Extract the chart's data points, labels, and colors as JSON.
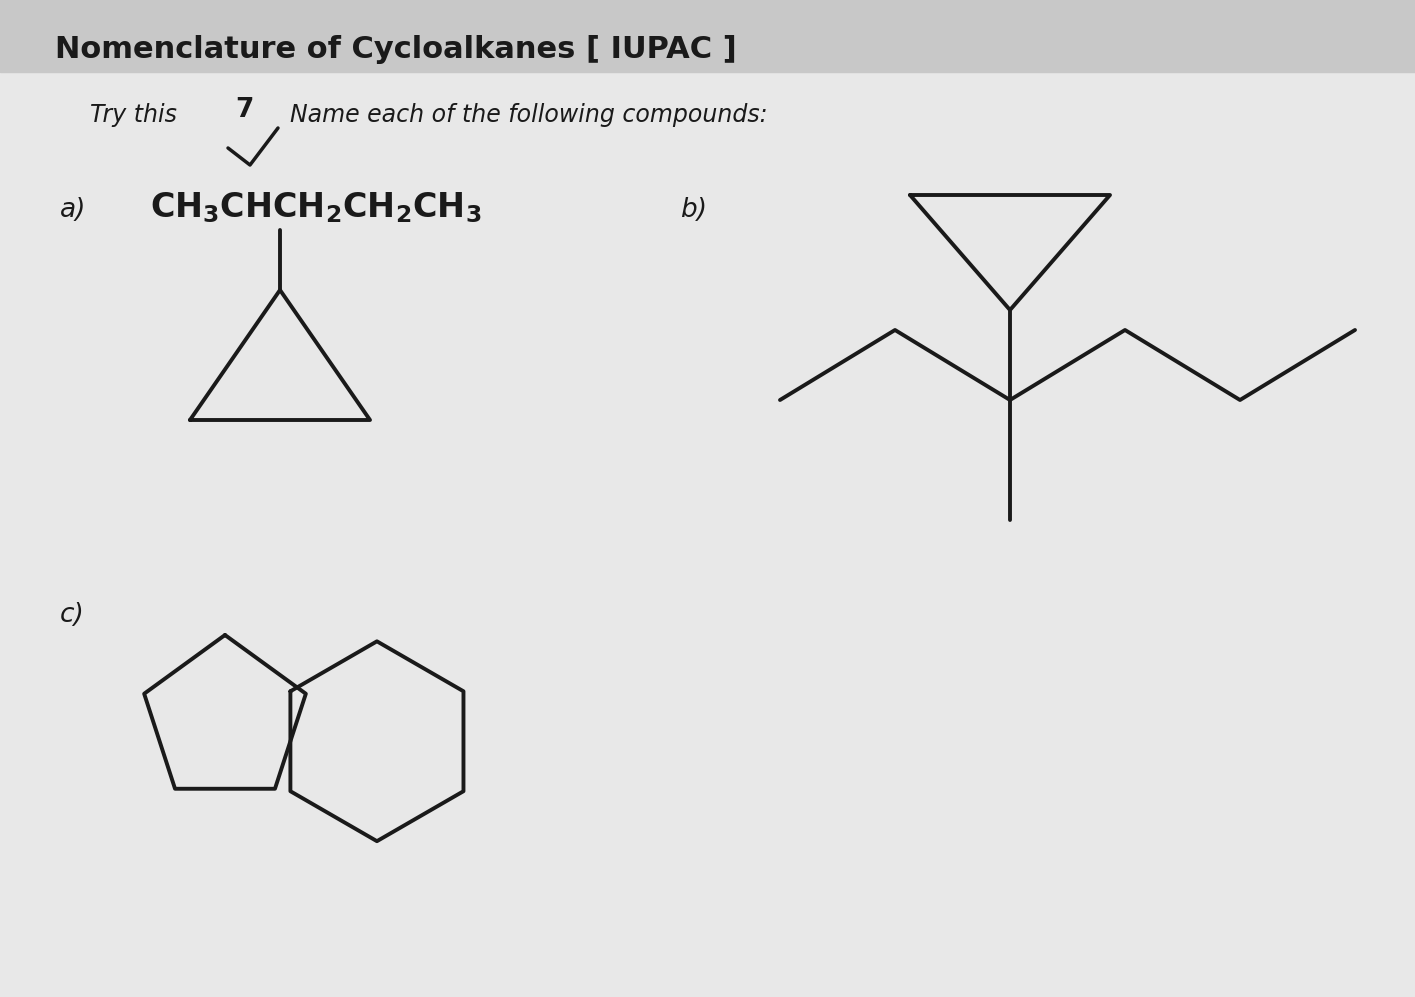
{
  "title": "Nomenclature of Cycloalkanes [ IUPAC ]",
  "label_a": "a)",
  "label_b": "b)",
  "label_c": "c)",
  "bg_color": "#e8e8e8",
  "line_color": "#1a1a1a",
  "text_color": "#1a1a1a",
  "line_width": 2.8,
  "title_bg": "#c8c8c8"
}
